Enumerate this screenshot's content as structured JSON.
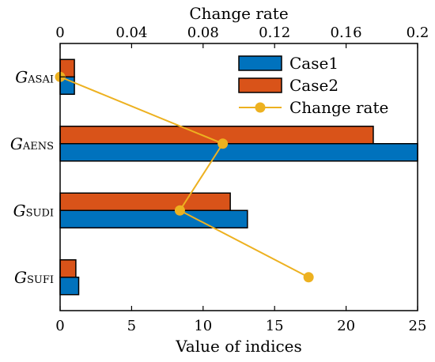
{
  "chart_data": {
    "type": "bar",
    "orientation": "horizontal",
    "categories": [
      {
        "main": "G",
        "sub": "ASAI",
        "sub_italic": true
      },
      {
        "main": "G",
        "sub": "AENS",
        "sub_italic": true
      },
      {
        "main": "G",
        "sub": "SUDI",
        "sub_italic": false
      },
      {
        "main": "G",
        "sub": "SUFI",
        "sub_italic": false
      }
    ],
    "series": [
      {
        "name": "Case1",
        "color": "#0072BD",
        "values": [
          1.0,
          25.0,
          13.1,
          1.3
        ]
      },
      {
        "name": "Case2",
        "color": "#D95319",
        "values": [
          1.0,
          21.9,
          11.9,
          1.1
        ]
      }
    ],
    "line_series": {
      "name": "Change rate",
      "color": "#EDB120",
      "values": [
        0.0,
        0.091,
        0.067,
        0.139
      ]
    },
    "xlabel_bottom": "Value of indices",
    "xlabel_top": "Change rate",
    "xlim_bottom": [
      0,
      25
    ],
    "xticks_bottom": [
      "0",
      "5",
      "10",
      "15",
      "20",
      "25"
    ],
    "xlim_top": [
      0,
      0.2
    ],
    "xticks_top": [
      "0",
      "0.04",
      "0.08",
      "0.12",
      "0.16",
      "0.2"
    ],
    "legend": {
      "position": "top-right",
      "labels": [
        "Case1",
        "Case2",
        "Change rate"
      ]
    },
    "grid": false
  }
}
